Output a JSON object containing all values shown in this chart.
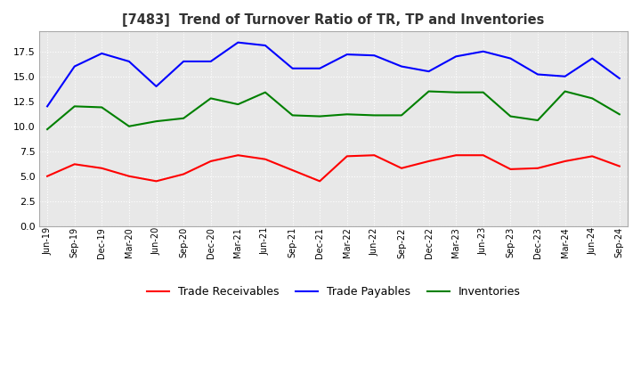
{
  "title": "[7483]  Trend of Turnover Ratio of TR, TP and Inventories",
  "ylim": [
    0.0,
    19.5
  ],
  "yticks": [
    0.0,
    2.5,
    5.0,
    7.5,
    10.0,
    12.5,
    15.0,
    17.5
  ],
  "plot_bg_color": "#e8e8e8",
  "fig_bg_color": "#ffffff",
  "grid_color": "#ffffff",
  "labels": [
    "Jun-19",
    "Sep-19",
    "Dec-19",
    "Mar-20",
    "Jun-20",
    "Sep-20",
    "Dec-20",
    "Mar-21",
    "Jun-21",
    "Sep-21",
    "Dec-21",
    "Mar-22",
    "Jun-22",
    "Sep-22",
    "Dec-22",
    "Mar-23",
    "Jun-23",
    "Sep-23",
    "Dec-23",
    "Mar-24",
    "Jun-24",
    "Sep-24"
  ],
  "trade_receivables": [
    5.0,
    6.2,
    5.8,
    5.0,
    4.5,
    5.2,
    6.5,
    7.1,
    6.7,
    5.6,
    4.5,
    7.0,
    7.1,
    5.8,
    6.5,
    7.1,
    7.1,
    5.7,
    5.8,
    6.5,
    7.0,
    6.0
  ],
  "trade_payables": [
    12.0,
    16.0,
    17.3,
    16.5,
    14.0,
    16.5,
    16.5,
    18.4,
    18.1,
    15.8,
    15.8,
    17.2,
    17.1,
    16.0,
    15.5,
    17.0,
    17.5,
    16.8,
    15.2,
    15.0,
    16.8,
    14.8
  ],
  "inventories": [
    9.7,
    12.0,
    11.9,
    10.0,
    10.5,
    10.8,
    12.8,
    12.2,
    13.4,
    11.1,
    11.0,
    11.2,
    11.1,
    11.1,
    13.5,
    13.4,
    13.4,
    11.0,
    10.6,
    13.5,
    12.8,
    11.2
  ],
  "tr_color": "#ff0000",
  "tp_color": "#0000ff",
  "inv_color": "#008000",
  "legend_labels": [
    "Trade Receivables",
    "Trade Payables",
    "Inventories"
  ]
}
